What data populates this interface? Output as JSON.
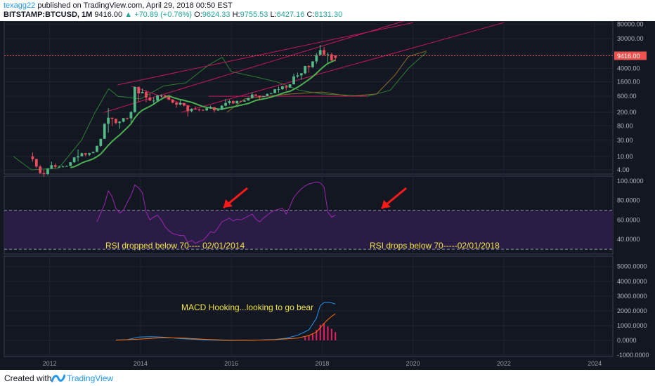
{
  "header": {
    "author": "texagg22",
    "published": "published on TradingView.com, April 29, 2018 00:50 EST",
    "symbol": "BITSTAMP:BTCUSD, 1M",
    "last": "9416.00",
    "change": "+70.89 (+0.76%)",
    "o_label": "O:",
    "o": "9624.33",
    "h_label": "H:",
    "h": "9755.53",
    "l_label": "L:",
    "l": "6427.16",
    "c_label": "C:",
    "c": "8131.30"
  },
  "footer": {
    "created": "Created with",
    "brand": "TradingView"
  },
  "chart_data": [
    {
      "type": "candlestick",
      "panel": "price",
      "scale": "log",
      "ylim": [
        3,
        100000
      ],
      "y_ticks": [
        "80000.00",
        "30000.00",
        "10000.00",
        "4000.00",
        "1600.00",
        "600.00",
        "200.00",
        "80.00",
        "30.00",
        "10.00",
        "4.00"
      ],
      "last_price_label": "9416.00",
      "colors": {
        "up": "#53b987",
        "down": "#eb4d5c",
        "ma": "#4caf50",
        "channel": "#c2185b",
        "cloud": "#2e7d32"
      },
      "candles": [
        [
          "2011-08",
          10.0,
          13.0,
          7.0,
          8.3
        ],
        [
          "2011-09",
          8.3,
          8.5,
          4.5,
          5.0
        ],
        [
          "2011-10",
          5.0,
          5.5,
          3.0,
          3.2
        ],
        [
          "2011-11",
          3.2,
          4.0,
          2.5,
          3.0
        ],
        [
          "2011-12",
          3.0,
          4.5,
          2.8,
          4.3
        ],
        [
          "2012-01",
          4.3,
          7.0,
          4.2,
          5.5
        ],
        [
          "2012-02",
          5.5,
          6.2,
          4.3,
          4.9
        ],
        [
          "2012-03",
          4.9,
          5.4,
          4.6,
          4.9
        ],
        [
          "2012-04",
          4.9,
          5.4,
          4.8,
          5.0
        ],
        [
          "2012-05",
          5.0,
          5.3,
          4.9,
          5.2
        ],
        [
          "2012-06",
          5.2,
          6.8,
          5.2,
          6.7
        ],
        [
          "2012-07",
          6.7,
          9.5,
          6.5,
          9.3
        ],
        [
          "2012-08",
          9.3,
          16.0,
          7.0,
          10.1
        ],
        [
          "2012-09",
          10.1,
          12.8,
          10.0,
          12.4
        ],
        [
          "2012-10",
          12.4,
          12.8,
          10.0,
          11.2
        ],
        [
          "2012-11",
          11.2,
          12.8,
          10.3,
          12.5
        ],
        [
          "2012-12",
          12.5,
          13.8,
          12.5,
          13.5
        ],
        [
          "2013-01",
          13.5,
          21.0,
          13.3,
          20.4
        ],
        [
          "2013-02",
          20.4,
          33.0,
          19.0,
          33.0
        ],
        [
          "2013-03",
          33.0,
          95.0,
          33.0,
          92.0
        ],
        [
          "2013-04",
          92.0,
          266.0,
          50.0,
          139.0
        ],
        [
          "2013-05",
          139.0,
          140.0,
          79.0,
          129.0
        ],
        [
          "2013-06",
          129.0,
          130.0,
          88.0,
          97.0
        ],
        [
          "2013-07",
          97.0,
          110.0,
          65.0,
          106.0
        ],
        [
          "2013-08",
          106.0,
          135.0,
          101.0,
          135.0
        ],
        [
          "2013-09",
          135.0,
          140.0,
          120.0,
          133.0
        ],
        [
          "2013-10",
          133.0,
          220.0,
          100.0,
          204.0
        ],
        [
          "2013-11",
          204.0,
          1160.0,
          195.0,
          1130.0
        ],
        [
          "2013-12",
          1130.0,
          1160.0,
          400.0,
          730.0
        ],
        [
          "2014-01",
          730.0,
          1000.0,
          730.0,
          800.0
        ],
        [
          "2014-02",
          800.0,
          900.0,
          400.0,
          550.0
        ],
        [
          "2014-03",
          550.0,
          700.0,
          440.0,
          445.0
        ],
        [
          "2014-04",
          445.0,
          550.0,
          340.0,
          445.0
        ],
        [
          "2014-05",
          445.0,
          650.0,
          420.0,
          630.0
        ],
        [
          "2014-06",
          630.0,
          680.0,
          550.0,
          640.0
        ],
        [
          "2014-07",
          640.0,
          650.0,
          565.0,
          585.0
        ],
        [
          "2014-08",
          585.0,
          600.0,
          450.0,
          480.0
        ],
        [
          "2014-09",
          480.0,
          490.0,
          370.0,
          386.0
        ],
        [
          "2014-10",
          386.0,
          410.0,
          275.0,
          338.0
        ],
        [
          "2014-11",
          338.0,
          460.0,
          320.0,
          378.0
        ],
        [
          "2014-12",
          378.0,
          380.0,
          300.0,
          318.0
        ],
        [
          "2015-01",
          318.0,
          320.0,
          152.0,
          217.0
        ],
        [
          "2015-02",
          217.0,
          265.0,
          200.0,
          254.0
        ],
        [
          "2015-03",
          254.0,
          300.0,
          240.0,
          244.0
        ],
        [
          "2015-04",
          244.0,
          260.0,
          215.0,
          236.0
        ],
        [
          "2015-05",
          236.0,
          245.0,
          225.0,
          230.0
        ],
        [
          "2015-06",
          230.0,
          267.0,
          220.0,
          264.0
        ],
        [
          "2015-07",
          264.0,
          315.0,
          253.0,
          284.0
        ],
        [
          "2015-08",
          284.0,
          285.0,
          198.0,
          230.0
        ],
        [
          "2015-09",
          230.0,
          245.0,
          225.0,
          236.0
        ],
        [
          "2015-10",
          236.0,
          330.0,
          235.0,
          314.0
        ],
        [
          "2015-11",
          314.0,
          500.0,
          300.0,
          377.0
        ],
        [
          "2015-12",
          377.0,
          470.0,
          340.0,
          430.0
        ],
        [
          "2016-01",
          430.0,
          460.0,
          355.0,
          368.0
        ],
        [
          "2016-02",
          368.0,
          445.0,
          365.0,
          436.0
        ],
        [
          "2016-03",
          436.0,
          440.0,
          400.0,
          416.0
        ],
        [
          "2016-04",
          416.0,
          470.0,
          410.0,
          448.0
        ],
        [
          "2016-05",
          448.0,
          540.0,
          440.0,
          531.0
        ],
        [
          "2016-06",
          531.0,
          780.0,
          515.0,
          670.0
        ],
        [
          "2016-07",
          670.0,
          700.0,
          610.0,
          624.0
        ],
        [
          "2016-08",
          624.0,
          625.0,
          470.0,
          575.0
        ],
        [
          "2016-09",
          575.0,
          615.0,
          570.0,
          608.0
        ],
        [
          "2016-10",
          608.0,
          730.0,
          600.0,
          700.0
        ],
        [
          "2016-11",
          700.0,
          750.0,
          680.0,
          742.0
        ],
        [
          "2016-12",
          742.0,
          975.0,
          740.0,
          963.0
        ],
        [
          "2017-01",
          963.0,
          1160.0,
          750.0,
          965.0
        ],
        [
          "2017-02",
          965.0,
          1210.0,
          920.0,
          1180.0
        ],
        [
          "2017-03",
          1180.0,
          1300.0,
          890.0,
          1080.0
        ],
        [
          "2017-04",
          1080.0,
          1350.0,
          1060.0,
          1350.0
        ],
        [
          "2017-05",
          1350.0,
          2760.0,
          1340.0,
          2300.0
        ],
        [
          "2017-06",
          2300.0,
          3000.0,
          2100.0,
          2480.0
        ],
        [
          "2017-07",
          2480.0,
          2900.0,
          1830.0,
          2860.0
        ],
        [
          "2017-08",
          2860.0,
          4750.0,
          2670.0,
          4710.0
        ],
        [
          "2017-09",
          4710.0,
          4980.0,
          2970.0,
          4340.0
        ],
        [
          "2017-10",
          4340.0,
          6470.0,
          4100.0,
          6440.0
        ],
        [
          "2017-11",
          6440.0,
          11400.0,
          5500.0,
          9950.0
        ],
        [
          "2017-12",
          9950.0,
          19666.0,
          9950.0,
          13850.0
        ],
        [
          "2018-01",
          13850.0,
          17200.0,
          9200.0,
          10200.0
        ],
        [
          "2018-02",
          10200.0,
          11800.0,
          6000.0,
          10300.0
        ],
        [
          "2018-03",
          10300.0,
          11700.0,
          6600.0,
          6900.0
        ],
        [
          "2018-04",
          9624.33,
          9755.53,
          6427.16,
          8131.3
        ]
      ]
    },
    {
      "type": "line",
      "panel": "rsi",
      "ylim": [
        25,
        105
      ],
      "y_ticks": [
        "100.0000",
        "80.0000",
        "60.0000",
        "40.0000"
      ],
      "bands": [
        30,
        70
      ],
      "series": [
        {
          "values": [
            [
              "2013-01",
              58
            ],
            [
              "2013-03",
              76
            ],
            [
              "2013-04",
              90
            ],
            [
              "2013-05",
              84
            ],
            [
              "2013-06",
              72
            ],
            [
              "2013-07",
              67
            ],
            [
              "2013-08",
              70
            ],
            [
              "2013-09",
              78
            ],
            [
              "2013-10",
              85
            ],
            [
              "2013-11",
              96
            ],
            [
              "2013-12",
              93
            ],
            [
              "2014-01",
              88
            ],
            [
              "2014-02",
              68
            ],
            [
              "2014-03",
              60
            ],
            [
              "2014-04",
              63
            ],
            [
              "2014-05",
              65
            ],
            [
              "2014-06",
              60
            ],
            [
              "2014-07",
              53
            ],
            [
              "2014-08",
              49
            ],
            [
              "2014-09",
              46
            ],
            [
              "2014-10",
              45
            ],
            [
              "2014-11",
              44
            ],
            [
              "2014-12",
              44
            ],
            [
              "2015-01",
              37
            ],
            [
              "2015-02",
              39
            ],
            [
              "2015-03",
              36
            ],
            [
              "2015-04",
              38
            ],
            [
              "2015-05",
              39
            ],
            [
              "2015-06",
              43
            ],
            [
              "2015-07",
              48
            ],
            [
              "2015-08",
              47
            ],
            [
              "2015-09",
              52
            ],
            [
              "2015-10",
              58
            ],
            [
              "2015-11",
              60
            ],
            [
              "2015-12",
              62
            ],
            [
              "2016-01",
              59
            ],
            [
              "2016-02",
              61
            ],
            [
              "2016-03",
              60
            ],
            [
              "2016-04",
              62
            ],
            [
              "2016-05",
              64
            ],
            [
              "2016-06",
              66
            ],
            [
              "2016-07",
              61
            ],
            [
              "2016-08",
              58
            ],
            [
              "2016-09",
              62
            ],
            [
              "2016-10",
              65
            ],
            [
              "2016-11",
              68
            ],
            [
              "2016-12",
              70
            ],
            [
              "2017-01",
              71
            ],
            [
              "2017-02",
              72
            ],
            [
              "2017-03",
              66
            ],
            [
              "2017-04",
              74
            ],
            [
              "2017-05",
              83
            ],
            [
              "2017-06",
              88
            ],
            [
              "2017-07",
              92
            ],
            [
              "2017-08",
              95
            ],
            [
              "2017-09",
              97
            ],
            [
              "2017-10",
              98
            ],
            [
              "2017-11",
              99
            ],
            [
              "2017-12",
              98
            ],
            [
              "2018-01",
              94
            ],
            [
              "2018-02",
              68
            ],
            [
              "2018-03",
              63
            ],
            [
              "2018-04",
              65
            ]
          ]
        }
      ],
      "annotations": [
        "RSI dropped below 70---- 02/01/2014",
        "RSI drops below 70-----02/01/2018"
      ]
    },
    {
      "type": "line",
      "panel": "macd",
      "ylim": [
        -1100,
        5700
      ],
      "y_ticks": [
        "5000.0000",
        "4000.0000",
        "3000.0000",
        "2000.0000",
        "1000.0000",
        "0.0000",
        "-1000.0000"
      ],
      "series": [
        {
          "values": [
            [
              "2013-06",
              20
            ],
            [
              "2013-09",
              40
            ],
            [
              "2013-12",
              220
            ],
            [
              "2014-03",
              240
            ],
            [
              "2014-06",
              220
            ],
            [
              "2014-09",
              160
            ],
            [
              "2014-12",
              100
            ],
            [
              "2015-06",
              20
            ],
            [
              "2015-12",
              -10
            ],
            [
              "2016-06",
              10
            ],
            [
              "2016-09",
              30
            ],
            [
              "2016-12",
              60
            ],
            [
              "2017-03",
              140
            ],
            [
              "2017-06",
              340
            ],
            [
              "2017-09",
              700
            ],
            [
              "2017-11",
              1500
            ],
            [
              "2017-12",
              2350
            ],
            [
              "2018-01",
              2550
            ],
            [
              "2018-02",
              2580
            ],
            [
              "2018-03",
              2540
            ],
            [
              "2018-04",
              2450
            ]
          ]
        },
        {
          "values": [
            [
              "2013-06",
              5
            ],
            [
              "2013-12",
              80
            ],
            [
              "2014-06",
              170
            ],
            [
              "2014-12",
              150
            ],
            [
              "2015-06",
              60
            ],
            [
              "2015-12",
              10
            ],
            [
              "2016-06",
              10
            ],
            [
              "2016-12",
              40
            ],
            [
              "2017-06",
              150
            ],
            [
              "2017-09",
              320
            ],
            [
              "2017-11",
              560
            ],
            [
              "2017-12",
              850
            ],
            [
              "2018-01",
              1150
            ],
            [
              "2018-02",
              1400
            ],
            [
              "2018-03",
              1620
            ],
            [
              "2018-04",
              1800
            ]
          ]
        }
      ],
      "histogram": [
        [
          "2017-08",
          220
        ],
        [
          "2017-09",
          320
        ],
        [
          "2017-10",
          480
        ],
        [
          "2017-11",
          700
        ],
        [
          "2017-12",
          1050
        ],
        [
          "2018-01",
          1150
        ],
        [
          "2018-02",
          950
        ],
        [
          "2018-03",
          780
        ],
        [
          "2018-04",
          560
        ]
      ],
      "annotations": [
        "MACD Hooking...looking to go bear"
      ]
    }
  ],
  "x_ticks": [
    "2012",
    "2014",
    "2016",
    "2018",
    "2020",
    "2022",
    "2024"
  ]
}
